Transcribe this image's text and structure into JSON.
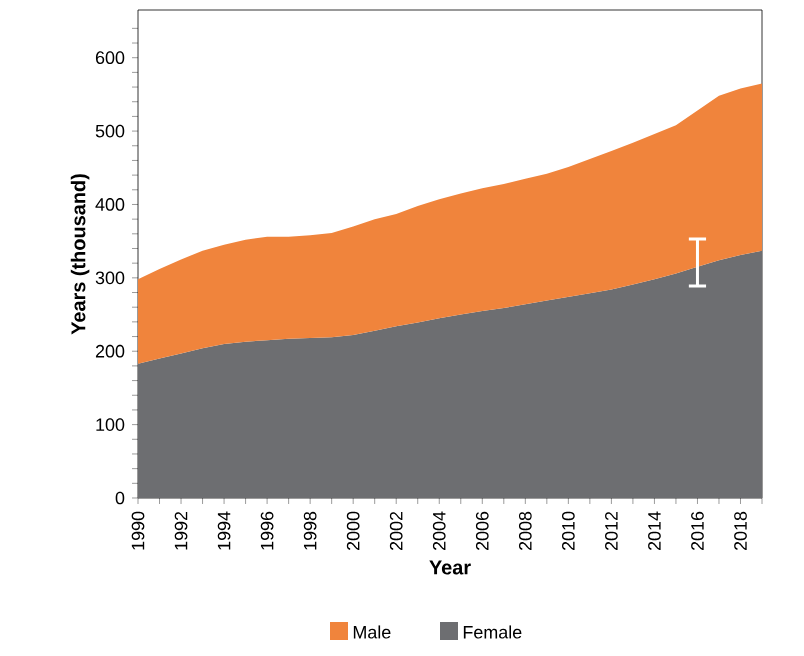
{
  "chart_data": {
    "type": "area",
    "stacked": true,
    "xlabel": "Year",
    "ylabel": "Years (thousand)",
    "x": [
      1990,
      1991,
      1992,
      1993,
      1994,
      1995,
      1996,
      1997,
      1998,
      1999,
      2000,
      2001,
      2002,
      2003,
      2004,
      2005,
      2006,
      2007,
      2008,
      2009,
      2010,
      2011,
      2012,
      2013,
      2014,
      2015,
      2016,
      2017,
      2018,
      2019
    ],
    "series": [
      {
        "name": "Female",
        "color": "#6d6e71",
        "values": [
          183,
          190,
          197,
          204,
          210,
          213,
          215,
          217,
          218,
          219,
          222,
          228,
          234,
          239,
          245,
          250,
          255,
          259,
          264,
          269,
          274,
          279,
          284,
          291,
          298,
          306,
          315,
          324,
          331,
          337
        ],
        "errors": [
          null,
          null,
          null,
          null,
          null,
          null,
          null,
          null,
          null,
          null,
          null,
          null,
          null,
          null,
          null,
          null,
          null,
          null,
          null,
          null,
          null,
          null,
          null,
          null,
          null,
          null,
          [
            289,
            353
          ],
          null,
          null,
          null
        ]
      },
      {
        "name": "Male",
        "color": "#f0843c",
        "values": [
          115,
          122,
          128,
          133,
          135,
          139,
          141,
          139,
          140,
          142,
          148,
          152,
          153,
          159,
          162,
          165,
          167,
          169,
          171,
          173,
          177,
          183,
          189,
          193,
          198,
          202,
          213,
          224,
          227,
          228
        ]
      }
    ],
    "xlim": [
      1990,
      2019
    ],
    "ylim": [
      0,
      665
    ],
    "xticks": [
      1990,
      {
        "value": 1991,
        "label": null
      },
      1992,
      {
        "value": 1993,
        "label": null
      },
      1994,
      {
        "value": 1995,
        "label": null
      },
      1996,
      {
        "value": 1997,
        "label": null
      },
      1998,
      {
        "value": 1999,
        "label": null
      },
      2000,
      {
        "value": 2001,
        "label": null
      },
      2002,
      {
        "value": 2003,
        "label": null
      },
      2004,
      {
        "value": 2005,
        "label": null
      },
      2006,
      {
        "value": 2007,
        "label": null
      },
      2008,
      {
        "value": 2009,
        "label": null
      },
      2010,
      {
        "value": 2011,
        "label": null
      },
      2012,
      {
        "value": 2013,
        "label": null
      },
      2014,
      {
        "value": 2015,
        "label": null
      },
      2016,
      {
        "value": 2017,
        "label": null
      },
      2018,
      {
        "value": 2019,
        "label": null
      }
    ],
    "yticks": [
      0,
      {
        "value": 20,
        "label": null
      },
      {
        "value": 40,
        "label": null
      },
      {
        "value": 60,
        "label": null
      },
      {
        "value": 80,
        "label": null
      },
      100,
      {
        "value": 120,
        "label": null
      },
      {
        "value": 140,
        "label": null
      },
      {
        "value": 160,
        "label": null
      },
      {
        "value": 180,
        "label": null
      },
      200,
      {
        "value": 220,
        "label": null
      },
      {
        "value": 240,
        "label": null
      },
      {
        "value": 260,
        "label": null
      },
      {
        "value": 280,
        "label": null
      },
      300,
      {
        "value": 320,
        "label": null
      },
      {
        "value": 340,
        "label": null
      },
      {
        "value": 360,
        "label": null
      },
      {
        "value": 380,
        "label": null
      },
      400,
      {
        "value": 420,
        "label": null
      },
      {
        "value": 440,
        "label": null
      },
      {
        "value": 460,
        "label": null
      },
      {
        "value": 480,
        "label": null
      },
      500,
      {
        "value": 520,
        "label": null
      },
      {
        "value": 540,
        "label": null
      },
      {
        "value": 560,
        "label": null
      },
      {
        "value": 580,
        "label": null
      },
      600,
      {
        "value": 620,
        "label": null
      },
      {
        "value": 640,
        "label": null
      }
    ],
    "grid": false,
    "legend": "bottom"
  }
}
